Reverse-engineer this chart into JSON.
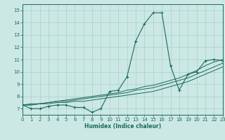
{
  "xlabel": "Humidex (Indice chaleur)",
  "background_color": "#cce8e4",
  "grid_color": "#aacfcb",
  "line_color": "#1a6b5a",
  "x_values": [
    0,
    1,
    2,
    3,
    4,
    5,
    6,
    7,
    8,
    9,
    10,
    11,
    12,
    13,
    14,
    15,
    16,
    17,
    18,
    19,
    20,
    21,
    22,
    23
  ],
  "y_main": [
    7.3,
    7.0,
    7.0,
    7.2,
    7.3,
    7.3,
    7.1,
    7.1,
    6.7,
    7.0,
    8.4,
    8.5,
    9.6,
    12.5,
    13.9,
    14.8,
    14.8,
    10.5,
    8.5,
    9.8,
    10.0,
    10.9,
    11.0,
    10.9
  ],
  "y_band1": [
    7.3,
    7.3,
    7.4,
    7.4,
    7.5,
    7.5,
    7.6,
    7.6,
    7.7,
    7.8,
    7.9,
    8.0,
    8.1,
    8.2,
    8.3,
    8.4,
    8.6,
    8.8,
    9.0,
    9.2,
    9.5,
    9.8,
    10.1,
    10.4
  ],
  "y_band2": [
    7.3,
    7.3,
    7.4,
    7.5,
    7.6,
    7.6,
    7.7,
    7.8,
    7.9,
    8.0,
    8.1,
    8.2,
    8.3,
    8.5,
    8.6,
    8.7,
    8.9,
    9.1,
    9.3,
    9.5,
    9.8,
    10.1,
    10.4,
    10.7
  ],
  "y_band3": [
    7.3,
    7.4,
    7.4,
    7.5,
    7.6,
    7.7,
    7.8,
    7.9,
    8.0,
    8.1,
    8.2,
    8.3,
    8.5,
    8.6,
    8.8,
    8.9,
    9.1,
    9.3,
    9.5,
    9.8,
    10.1,
    10.5,
    10.8,
    11.0
  ],
  "xlim": [
    0,
    23
  ],
  "ylim": [
    6.5,
    15.5
  ],
  "yticks": [
    7,
    8,
    9,
    10,
    11,
    12,
    13,
    14,
    15
  ],
  "xticks": [
    0,
    1,
    2,
    3,
    4,
    5,
    6,
    7,
    8,
    9,
    10,
    11,
    12,
    13,
    14,
    15,
    16,
    17,
    18,
    19,
    20,
    21,
    22,
    23
  ]
}
